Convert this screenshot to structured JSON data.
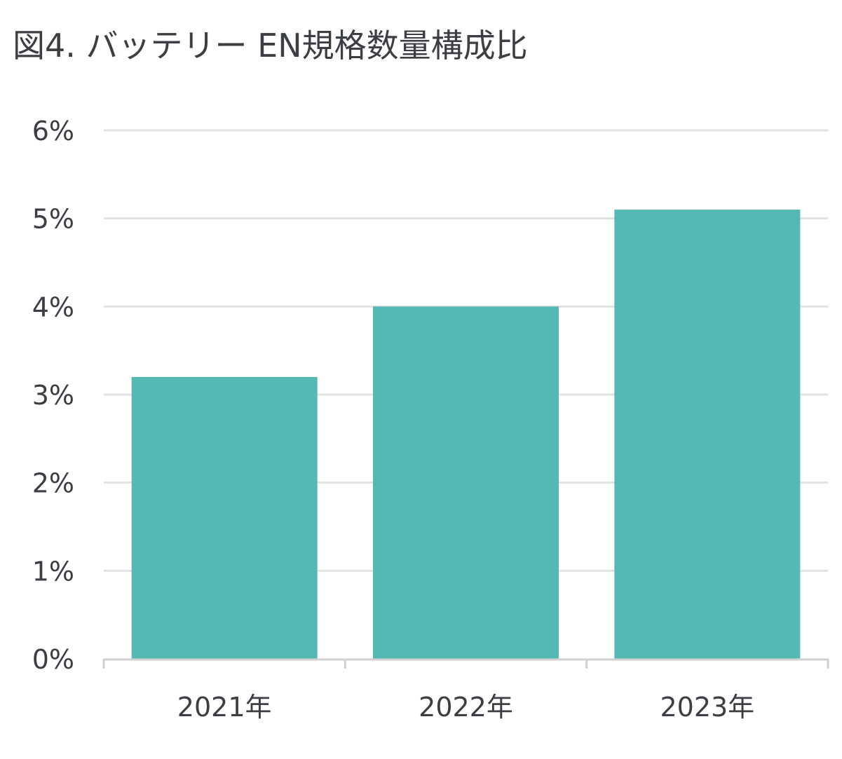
{
  "chart_data": {
    "type": "bar",
    "title": "図4. バッテリー EN規格数量構成比",
    "xlabel": "",
    "ylabel": "",
    "categories": [
      "2021年",
      "2022年",
      "2023年"
    ],
    "values": [
      3.2,
      4.0,
      5.1
    ],
    "value_unit": "%",
    "ylim": [
      0,
      6
    ],
    "yticks": [
      "0%",
      "1%",
      "2%",
      "3%",
      "4%",
      "5%",
      "6%"
    ],
    "grid": true,
    "legend": "none",
    "colors": {
      "bar": "#56b8b2",
      "grid": "#e2e2e2",
      "axis": "#d0d0d0",
      "text": "#3b3f44"
    }
  }
}
